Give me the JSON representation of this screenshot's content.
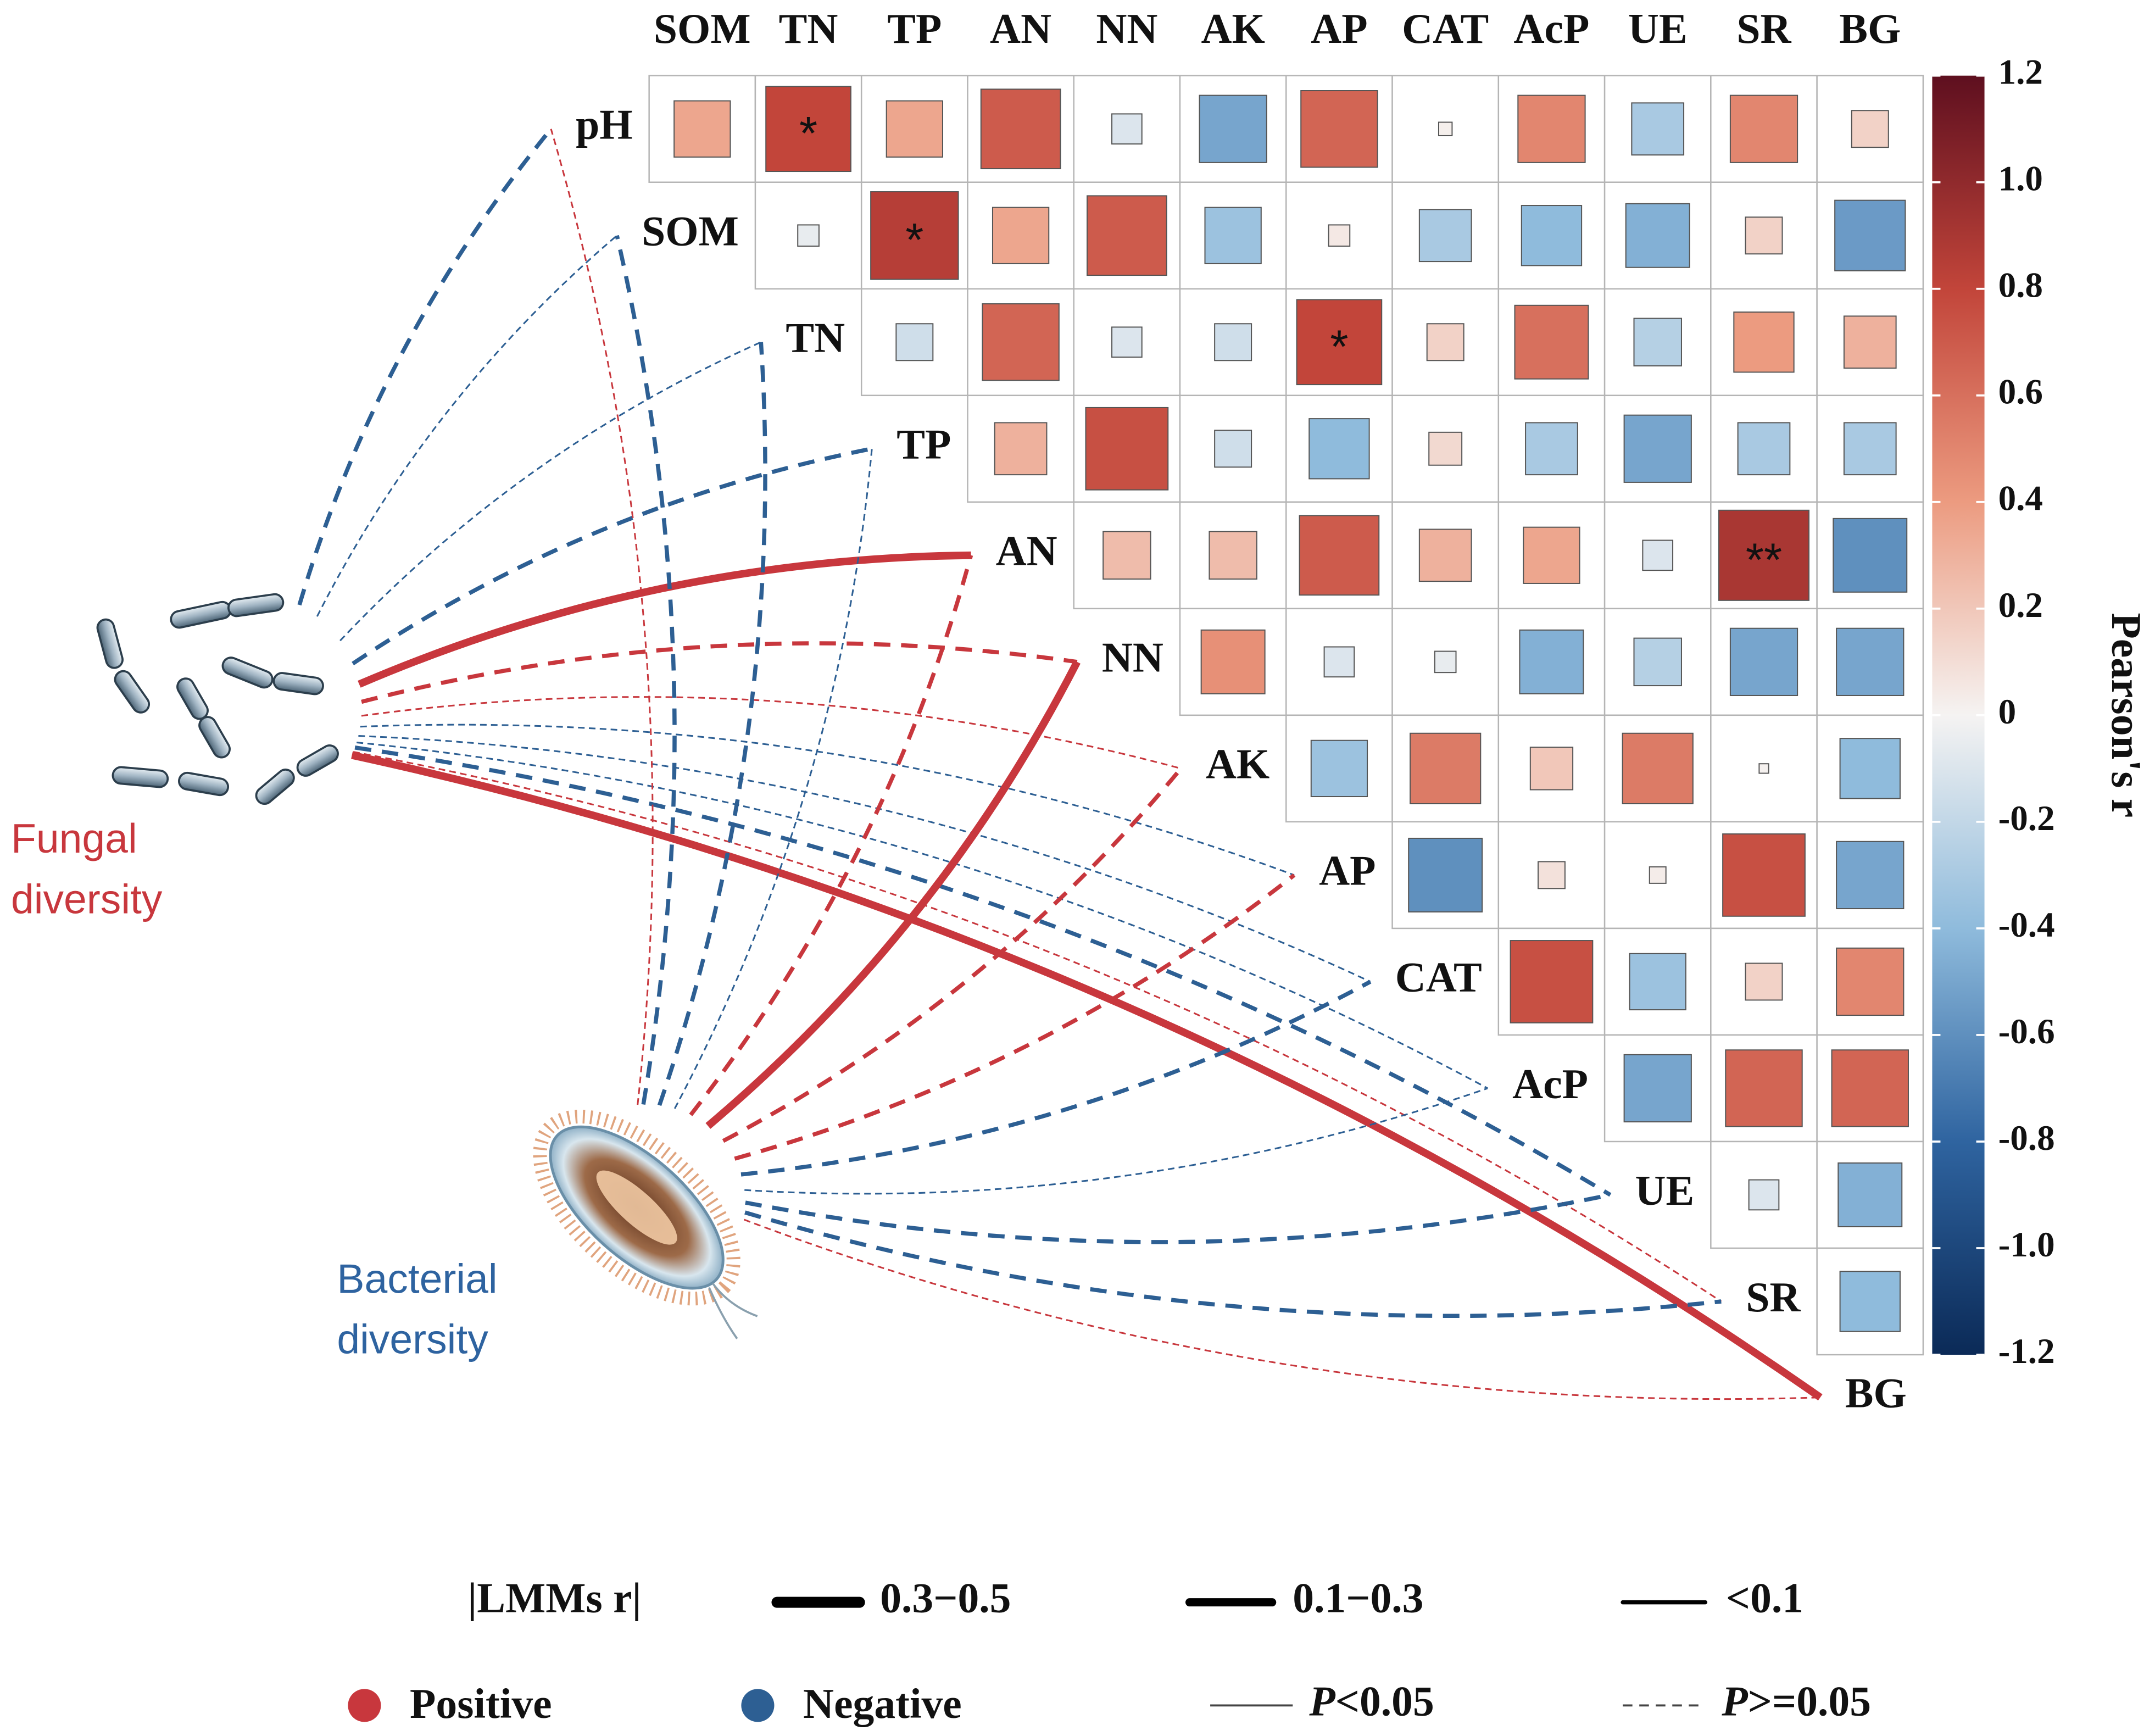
{
  "chart_data": {
    "type": "correlation_network",
    "columns": [
      "SOM",
      "TN",
      "TP",
      "AN",
      "NN",
      "AK",
      "AP",
      "CAT",
      "AcP",
      "UE",
      "SR",
      "BG"
    ],
    "rows": [
      "pH",
      "SOM",
      "TN",
      "TP",
      "AN",
      "NN",
      "AK",
      "AP",
      "CAT",
      "AcP",
      "UE",
      "SR"
    ],
    "values": [
      [
        0.35,
        0.8,
        0.35,
        0.7,
        -0.1,
        -0.5,
        0.65,
        0.02,
        0.5,
        -0.3,
        0.5,
        0.15
      ],
      [
        -0.05,
        0.85,
        0.35,
        0.7,
        -0.35,
        0.05,
        -0.3,
        -0.4,
        -0.45,
        0.15,
        -0.55
      ],
      [
        -0.15,
        0.65,
        -0.1,
        -0.15,
        0.8,
        0.15,
        0.6,
        -0.25,
        0.4,
        0.3
      ],
      [
        0.3,
        0.75,
        -0.15,
        -0.4,
        0.12,
        -0.3,
        -0.5,
        -0.3,
        -0.3
      ],
      [
        0.25,
        0.25,
        0.7,
        0.3,
        0.35,
        -0.1,
        0.9,
        -0.6
      ],
      [
        0.45,
        -0.1,
        -0.05,
        -0.45,
        -0.25,
        -0.5,
        -0.5
      ],
      [
        -0.35,
        0.55,
        0.2,
        0.55,
        0.01,
        -0.4
      ],
      [
        -0.6,
        0.08,
        0.03,
        0.75,
        -0.5
      ],
      [
        0.75,
        -0.35,
        0.15,
        0.5
      ],
      [
        -0.5,
        0.65,
        0.65
      ],
      [
        -0.1,
        -0.45
      ],
      [
        -0.4
      ]
    ],
    "annotations": [
      {
        "row": "pH",
        "column": "TN",
        "text": "*"
      },
      {
        "row": "SOM",
        "column": "TP",
        "text": "*"
      },
      {
        "row": "TN",
        "column": "AP",
        "text": "*"
      },
      {
        "row": "AN",
        "column": "SR",
        "text": "**"
      }
    ],
    "zlim": [
      -1.2,
      1.2
    ],
    "zticks": [
      1.2,
      {
        "value": 1,
        "label": "1.0"
      },
      0.8,
      0.6,
      0.4,
      0.2,
      0,
      -0.2,
      -0.4,
      -0.6,
      -0.8,
      {
        "value": -1,
        "label": "-1.0"
      },
      -1.2
    ],
    "colorbar_title": "Pearson's r",
    "colorscale": [
      "#0b2a57",
      "#2f64a0",
      "#8fbbdc",
      "#f5f3f2",
      "#ec9b80",
      "#c2453a",
      "#5e0f1f"
    ],
    "groups": [
      {
        "name": "Fungal diversity",
        "color": "#c8373d",
        "links": [
          {
            "target": "pH",
            "sign": "Negative",
            "width": "0.1−0.3",
            "significance": "P>=0.05"
          },
          {
            "target": "SOM",
            "sign": "Negative",
            "width": "<0.1",
            "significance": "P>=0.05"
          },
          {
            "target": "TN",
            "sign": "Negative",
            "width": "<0.1",
            "significance": "P>=0.05"
          },
          {
            "target": "TP",
            "sign": "Negative",
            "width": "0.1−0.3",
            "significance": "P>=0.05"
          },
          {
            "target": "AN",
            "sign": "Positive",
            "width": "0.3−0.5",
            "significance": "P<0.05"
          },
          {
            "target": "NN",
            "sign": "Positive",
            "width": "0.1−0.3",
            "significance": "P>=0.05"
          },
          {
            "target": "AK",
            "sign": "Positive",
            "width": "<0.1",
            "significance": "P>=0.05"
          },
          {
            "target": "AP",
            "sign": "Negative",
            "width": "<0.1",
            "significance": "P>=0.05"
          },
          {
            "target": "CAT",
            "sign": "Negative",
            "width": "<0.1",
            "significance": "P>=0.05"
          },
          {
            "target": "AcP",
            "sign": "Negative",
            "width": "<0.1",
            "significance": "P>=0.05"
          },
          {
            "target": "UE",
            "sign": "Negative",
            "width": "0.1−0.3",
            "significance": "P>=0.05"
          },
          {
            "target": "SR",
            "sign": "Positive",
            "width": "<0.1",
            "significance": "P>=0.05"
          },
          {
            "target": "BG",
            "sign": "Positive",
            "width": "0.3−0.5",
            "significance": "P<0.05"
          }
        ]
      },
      {
        "name": "Bacterial diversity",
        "color": "#2e63a0",
        "links": [
          {
            "target": "pH",
            "sign": "Positive",
            "width": "<0.1",
            "significance": "P>=0.05"
          },
          {
            "target": "SOM",
            "sign": "Negative",
            "width": "0.1−0.3",
            "significance": "P>=0.05"
          },
          {
            "target": "TN",
            "sign": "Negative",
            "width": "0.1−0.3",
            "significance": "P>=0.05"
          },
          {
            "target": "TP",
            "sign": "Negative",
            "width": "<0.1",
            "significance": "P>=0.05"
          },
          {
            "target": "AN",
            "sign": "Positive",
            "width": "0.1−0.3",
            "significance": "P>=0.05"
          },
          {
            "target": "NN",
            "sign": "Positive",
            "width": "0.3−0.5",
            "significance": "P<0.05"
          },
          {
            "target": "AK",
            "sign": "Positive",
            "width": "0.1−0.3",
            "significance": "P>=0.05"
          },
          {
            "target": "AP",
            "sign": "Positive",
            "width": "0.1−0.3",
            "significance": "P>=0.05"
          },
          {
            "target": "CAT",
            "sign": "Negative",
            "width": "0.1−0.3",
            "significance": "P>=0.05"
          },
          {
            "target": "AcP",
            "sign": "Negative",
            "width": "<0.1",
            "significance": "P>=0.05"
          },
          {
            "target": "UE",
            "sign": "Negative",
            "width": "0.1−0.3",
            "significance": "P>=0.05"
          },
          {
            "target": "SR",
            "sign": "Negative",
            "width": "0.1−0.3",
            "significance": "P>=0.05"
          },
          {
            "target": "BG",
            "sign": "Positive",
            "width": "<0.1",
            "significance": "P>=0.05"
          }
        ]
      }
    ],
    "legend": {
      "title": "|LMMs r|",
      "widths": [
        "0.3−0.5",
        "0.1−0.3",
        "<0.1"
      ],
      "signs": [
        {
          "name": "Positive",
          "color": "#c8373d"
        },
        {
          "name": "Negative",
          "color": "#2d5f93"
        }
      ],
      "significance": [
        "P<0.05",
        "P>=0.05"
      ]
    }
  }
}
